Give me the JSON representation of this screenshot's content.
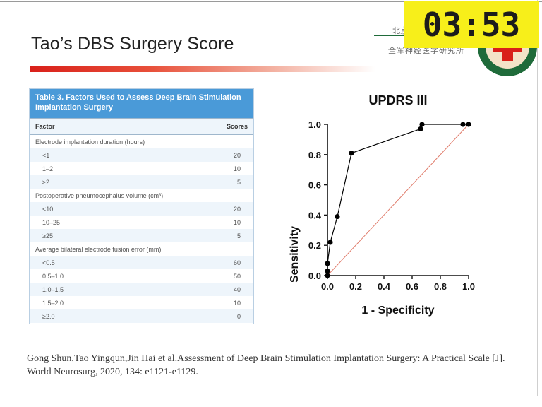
{
  "slide": {
    "title": "Tao’s DBS Surgery Score",
    "institute_line1": "北京",
    "institute_line2": "全军神经医学研究所"
  },
  "timer": {
    "value": "03:53",
    "color": "#f7ef1a"
  },
  "table": {
    "caption": "Table 3. Factors Used to Assess Deep Brain Stimulation Implantation Surgery",
    "col_factor": "Factor",
    "col_scores": "Scores",
    "rows": [
      {
        "factor": "Electrode implantation duration (hours)",
        "score": "",
        "indent": false
      },
      {
        "factor": "<1",
        "score": "20",
        "indent": true
      },
      {
        "factor": "1–2",
        "score": "10",
        "indent": true
      },
      {
        "factor": "≥2",
        "score": "5",
        "indent": true
      },
      {
        "factor": "Postoperative pneumocephalus volume (cm³)",
        "score": "",
        "indent": false
      },
      {
        "factor": "<10",
        "score": "20",
        "indent": true
      },
      {
        "factor": "10–25",
        "score": "10",
        "indent": true
      },
      {
        "factor": "≥25",
        "score": "5",
        "indent": true
      },
      {
        "factor": "Average bilateral electrode fusion error (mm)",
        "score": "",
        "indent": false
      },
      {
        "factor": "<0.5",
        "score": "60",
        "indent": true
      },
      {
        "factor": "0.5–1.0",
        "score": "50",
        "indent": true
      },
      {
        "factor": "1.0–1.5",
        "score": "40",
        "indent": true
      },
      {
        "factor": "1.5–2.0",
        "score": "10",
        "indent": true
      },
      {
        "factor": "≥2.0",
        "score": "0",
        "indent": true
      }
    ]
  },
  "chart_data": {
    "type": "line",
    "title": "UPDRS III",
    "xlabel": "1 - Specificity",
    "ylabel": "Sensitivity",
    "xlim": [
      0,
      1
    ],
    "ylim": [
      0,
      1
    ],
    "xticks": [
      "0.0",
      "0.2",
      "0.4",
      "0.6",
      "0.8",
      "1.0"
    ],
    "yticks": [
      "0.0",
      "0.2",
      "0.4",
      "0.6",
      "0.8",
      "1.0"
    ],
    "series": [
      {
        "x": [
          0.0,
          0.0,
          0.0,
          0.0,
          0.02,
          0.07,
          0.17,
          0.66,
          0.67,
          0.96,
          1.0
        ],
        "y": [
          0.0,
          0.03,
          0.08,
          0.08,
          0.22,
          0.39,
          0.81,
          0.97,
          1.0,
          1.0,
          1.0
        ],
        "color": "#000000"
      }
    ],
    "reference_line": {
      "x": [
        0,
        1
      ],
      "y": [
        0,
        1
      ],
      "color": "#e07b6a"
    },
    "grid": false
  },
  "citation": {
    "line1": "Gong Shun,Tao Yingqun,Jin Hai et al.Assessment of Deep Brain Stimulation Implantation Surgery: A Practical Scale [J].",
    "line2": "World Neurosurg, 2020, 134: e1121-e1129."
  }
}
